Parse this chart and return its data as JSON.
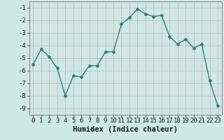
{
  "x": [
    0,
    1,
    2,
    3,
    4,
    5,
    6,
    7,
    8,
    9,
    10,
    11,
    12,
    13,
    14,
    15,
    16,
    17,
    18,
    19,
    20,
    21,
    22,
    23
  ],
  "y": [
    -5.5,
    -4.3,
    -4.9,
    -5.8,
    -8.0,
    -6.4,
    -6.5,
    -5.6,
    -5.6,
    -4.5,
    -4.5,
    -2.3,
    -1.8,
    -1.1,
    -1.5,
    -1.7,
    -1.6,
    -3.3,
    -3.9,
    -3.5,
    -4.2,
    -3.9,
    -6.8,
    -8.8
  ],
  "line_color": "#2e7d72",
  "marker": "D",
  "marker_size": 2.0,
  "line_width": 1.0,
  "xlabel": "Humidex (Indice chaleur)",
  "xlabel_fontsize": 7.5,
  "bg_color": "#cee8e4",
  "grid_color_major": "#c8a0a0",
  "grid_color_minor": "#b8d8d4",
  "tick_fontsize": 6.5,
  "ylim": [
    -9.5,
    -0.5
  ],
  "xlim": [
    -0.5,
    23.5
  ],
  "yticks": [
    -9,
    -8,
    -7,
    -6,
    -5,
    -4,
    -3,
    -2,
    -1
  ],
  "xticks": [
    0,
    1,
    2,
    3,
    4,
    5,
    6,
    7,
    8,
    9,
    10,
    11,
    12,
    13,
    14,
    15,
    16,
    17,
    18,
    19,
    20,
    21,
    22,
    23
  ]
}
